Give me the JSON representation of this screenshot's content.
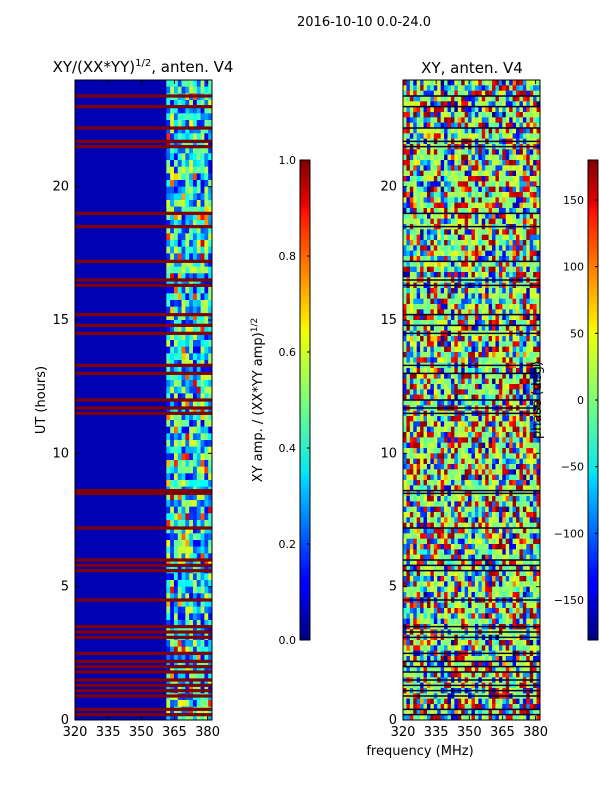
{
  "figure": {
    "suptitle": "2016-10-10 0.0-24.0",
    "xlabel_shared": "frequency (MHz)"
  },
  "chart_data": [
    {
      "type": "heatmap",
      "title_main": "XY/(XX*YY)",
      "title_sup": "1/2",
      "title_tail": ", anten. V4",
      "xlabel": "",
      "ylabel": "UT (hours)",
      "xlim": [
        320,
        382
      ],
      "ylim": [
        0,
        24
      ],
      "xticks": [
        320,
        335,
        350,
        365,
        380
      ],
      "yticks": [
        0,
        5,
        10,
        15,
        20
      ],
      "colorbar": {
        "label_main": "XY amp. / (XX*YY amp)",
        "label_sup": "1/2",
        "range": [
          0.0,
          1.0
        ],
        "ticks": [
          "0.0",
          "0.2",
          "0.4",
          "0.6",
          "0.8",
          "1.0"
        ],
        "colormap": "jet"
      },
      "flagged_hours": [
        0.2,
        0.4,
        0.9,
        1.1,
        1.3,
        1.5,
        1.8,
        2.0,
        2.2,
        2.5,
        3.1,
        3.3,
        3.5,
        4.5,
        5.6,
        5.8,
        6.0,
        7.2,
        8.5,
        8.6,
        11.5,
        11.7,
        12.0,
        13.0,
        13.3,
        14.5,
        14.8,
        15.2,
        16.3,
        16.5,
        17.2,
        18.5,
        19.0,
        21.5,
        21.7,
        22.2,
        23.0,
        23.4
      ],
      "active_band_mhz": [
        361,
        382
      ],
      "background_value": 0.05
    },
    {
      "type": "heatmap",
      "title": "XY, anten. V4",
      "xlabel": "frequency (MHz)",
      "ylabel": "",
      "xlim": [
        320,
        382
      ],
      "ylim": [
        0,
        24
      ],
      "xticks": [
        320,
        335,
        350,
        365,
        380
      ],
      "yticks": [
        0,
        5,
        10,
        15,
        20
      ],
      "colorbar": {
        "label": "phase (deg)",
        "range": [
          -180,
          180
        ],
        "ticks": [
          "−150",
          "−100",
          "−50",
          "0",
          "50",
          "100",
          "150"
        ],
        "colormap": "jet"
      },
      "background_value": 0
    }
  ]
}
